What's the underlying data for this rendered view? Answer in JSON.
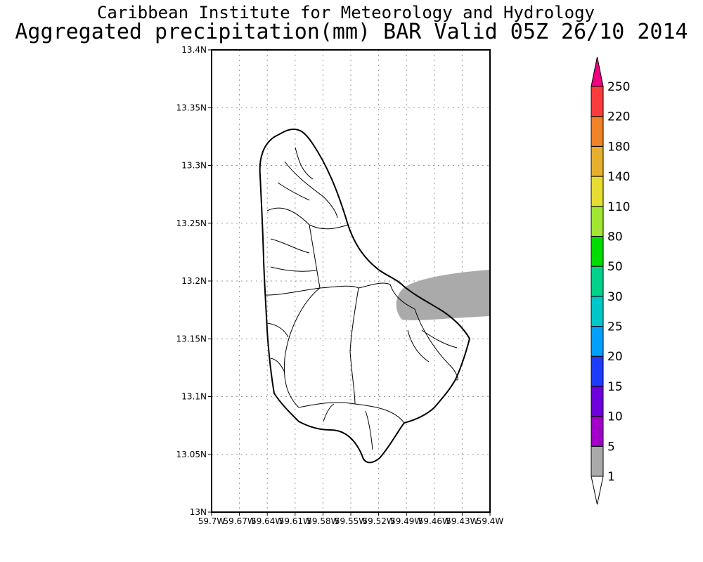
{
  "titles": {
    "line1": "Caribbean Institute for Meteorology and Hydrology",
    "line2": "Aggregated precipitation(mm) BAR Valid 05Z 26/10 2014"
  },
  "map": {
    "lat_ticks": [
      "13N",
      "13.05N",
      "13.1N",
      "13.15N",
      "13.2N",
      "13.25N",
      "13.3N",
      "13.35N",
      "13.4N"
    ],
    "lon_ticks": [
      "59.7W",
      "59.67W",
      "59.64W",
      "59.61W",
      "59.58W",
      "59.55W",
      "59.52W",
      "59.49W",
      "59.46W",
      "59.43W",
      "59.4W"
    ],
    "lat_range": [
      13.0,
      13.4
    ],
    "lon_range": [
      -59.7,
      -59.4
    ],
    "gridlines": "dotted",
    "precip_region_color": "#aaaaaa"
  },
  "colorbar": {
    "labels": [
      "1",
      "5",
      "10",
      "15",
      "20",
      "25",
      "30",
      "50",
      "80",
      "110",
      "140",
      "180",
      "220",
      "250"
    ],
    "colors": [
      "#aaaaaa",
      "#a000c8",
      "#6e00dc",
      "#1e3cff",
      "#00a0ff",
      "#00c8c8",
      "#00d28c",
      "#00dc00",
      "#a0e632",
      "#e6dc32",
      "#e6af2d",
      "#f08228",
      "#fa3c3c",
      "#f00082"
    ]
  }
}
